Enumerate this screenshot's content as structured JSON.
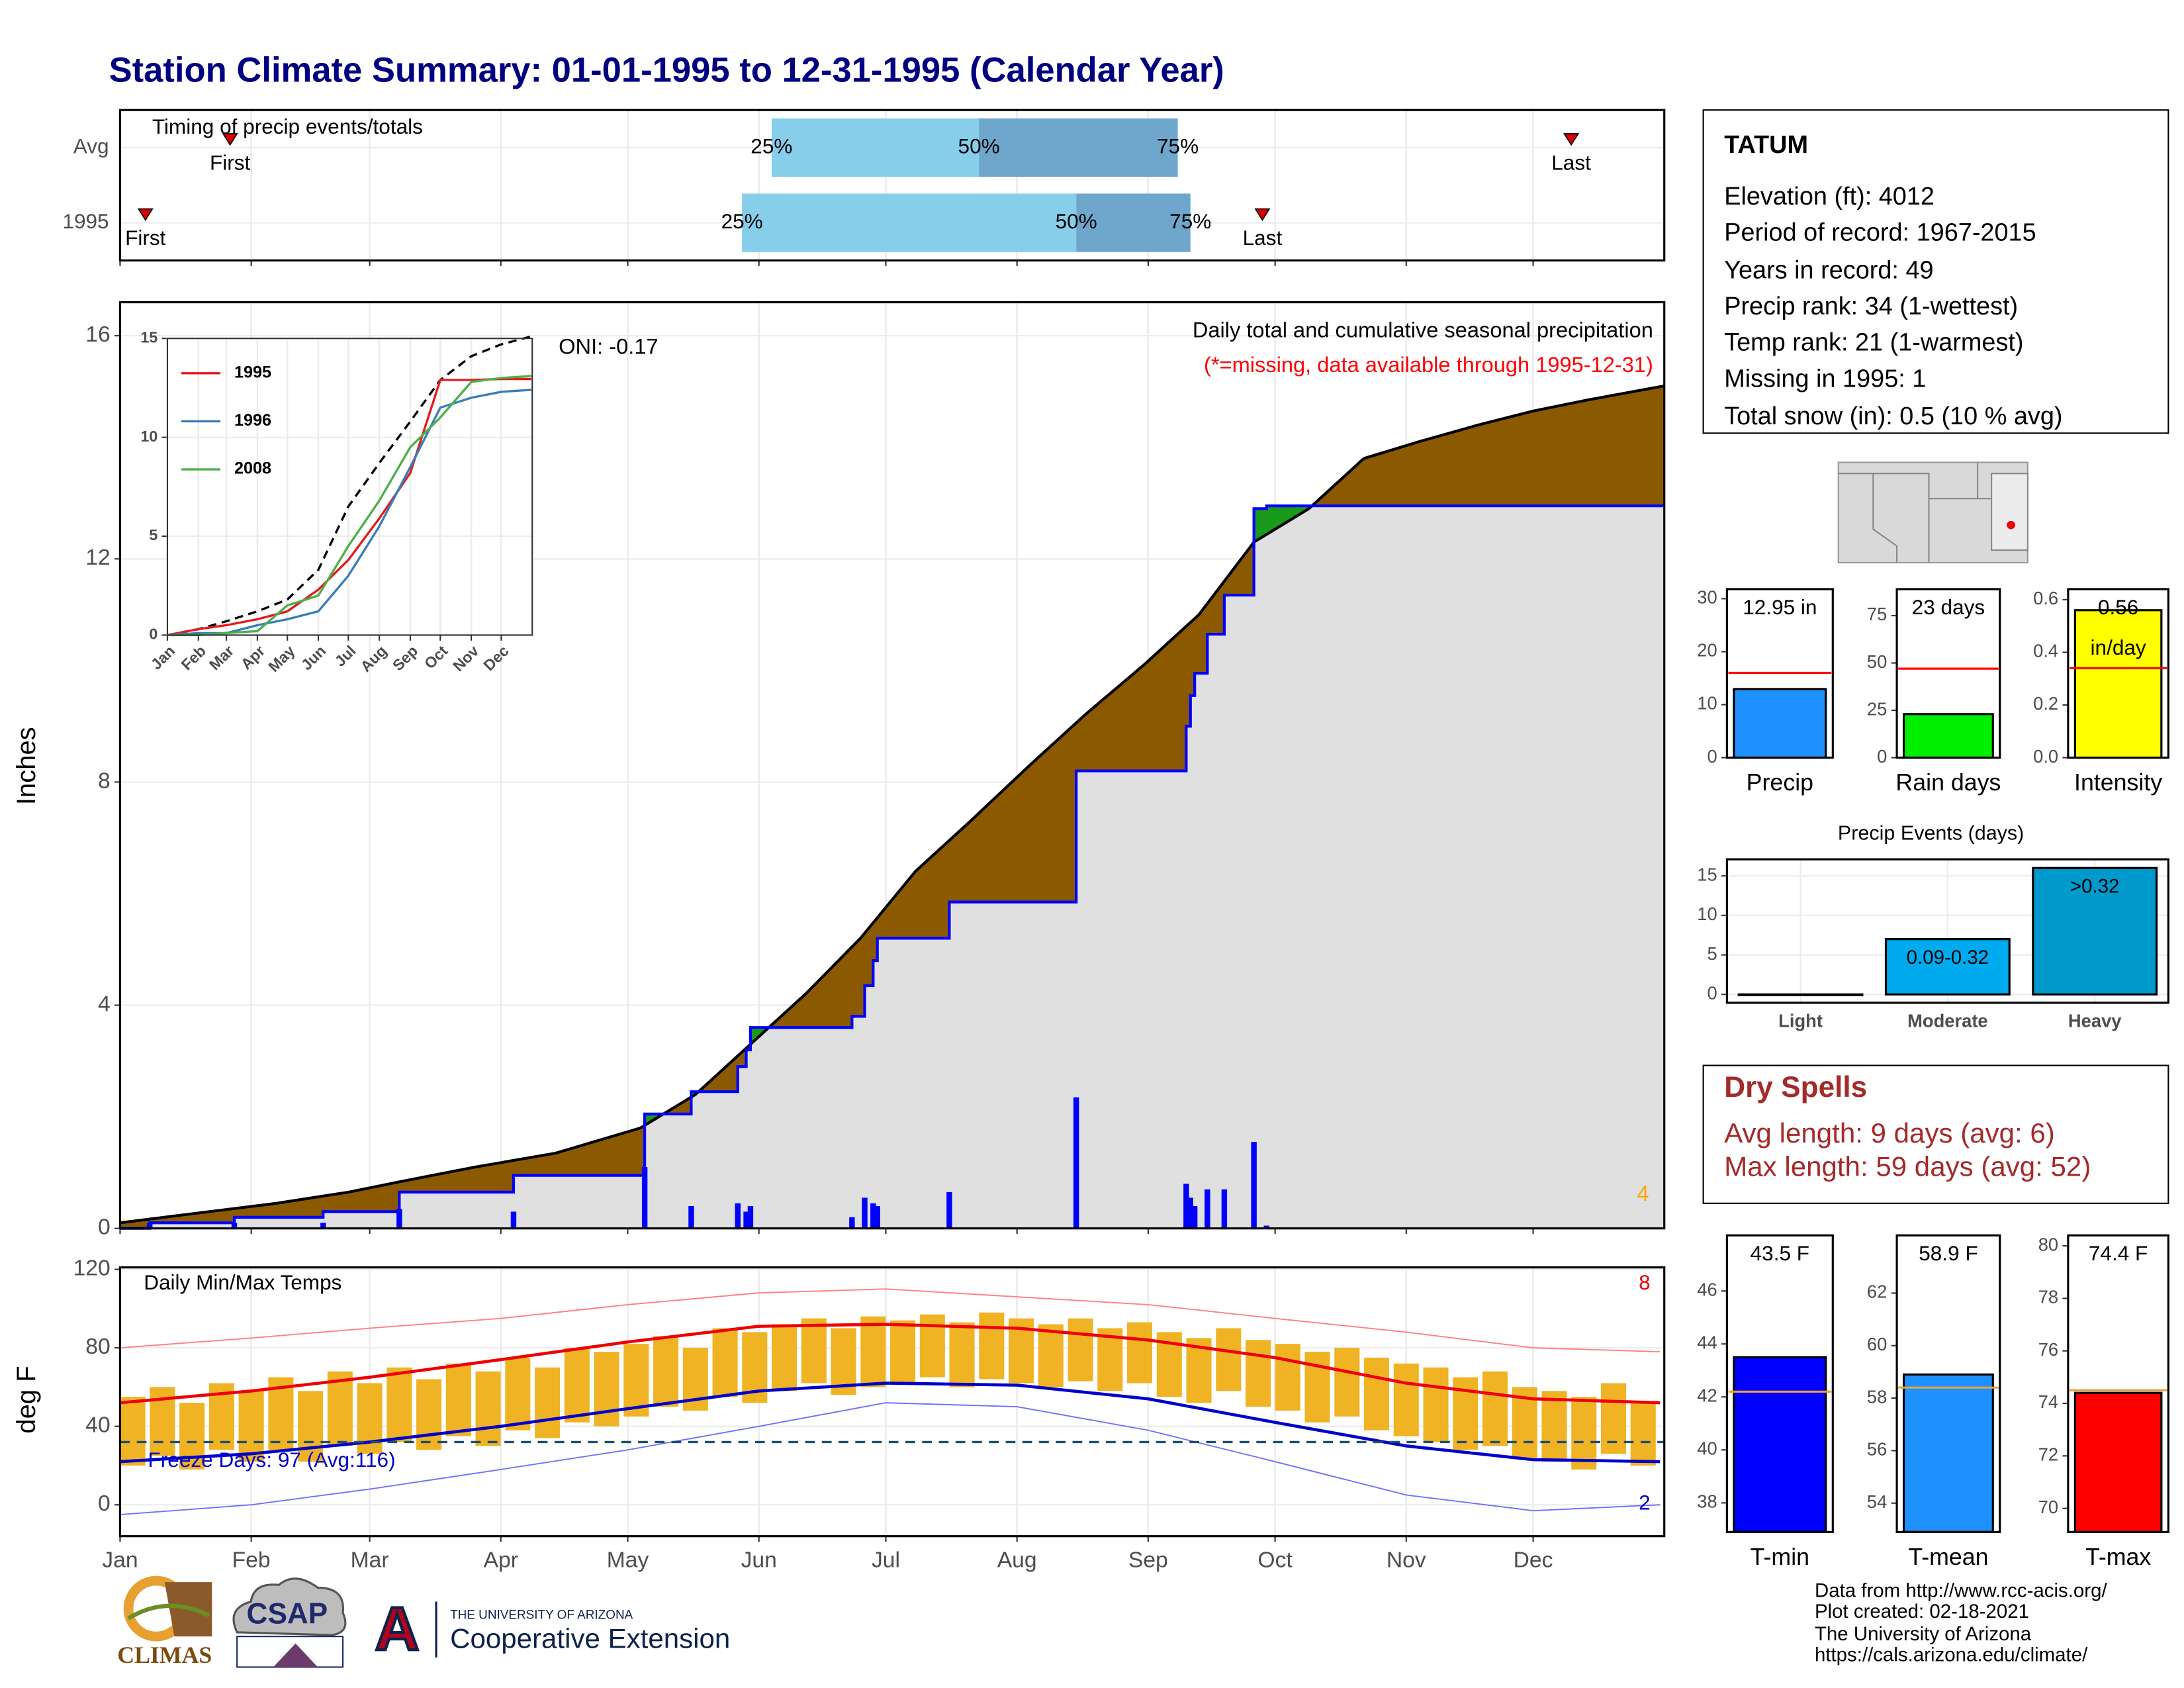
{
  "title": "Station Climate Summary: 01-01-1995 to 12-31-1995 (Calendar Year)",
  "station": {
    "name": "TATUM",
    "lines": [
      "Elevation (ft): 4012",
      "Period of record: 1967-2015",
      "Years in record: 49",
      "Precip rank: 34 (1-wettest)",
      "Temp rank: 21 (1-warmest)",
      "Missing in 1995: 1",
      "Total snow (in): 0.5 (10 % avg)"
    ]
  },
  "dry_spells": {
    "title": "Dry Spells",
    "lines": [
      "Avg length: 9 days (avg: 6)",
      "Max length: 59 days (avg: 52)"
    ]
  },
  "footer": [
    "Data from http://www.rcc-acis.org/",
    "Plot created: 02-18-2021",
    "The University of Arizona",
    "https://cals.arizona.edu/climate/"
  ],
  "logos": {
    "climas": "CLIMAS",
    "csap": "CSAP",
    "ua_mark": "A",
    "ua_name": "THE UNIVERSITY OF ARIZONA",
    "extension": "Cooperative Extension"
  },
  "chart_data": [
    {
      "type": "timing",
      "title": "Timing of precip events/totals",
      "categories": [
        "Avg",
        "1995"
      ],
      "first": [
        27,
        7
      ],
      "last": [
        344,
        271
      ],
      "q25": [
        155,
        148
      ],
      "q50": [
        204,
        227
      ],
      "q75": [
        251,
        254
      ],
      "quantile_labels": [
        "25%",
        "50%",
        "75%"
      ],
      "event_labels": [
        "First",
        "Last"
      ],
      "colors": [
        "#87ceeb",
        "#6ea6cc"
      ],
      "marker_color": "#dd0000",
      "xlim": [
        1,
        366
      ],
      "xticks": [
        1,
        32,
        60,
        91,
        121,
        152,
        182,
        213,
        244,
        274,
        305,
        335
      ]
    },
    {
      "type": "cumulative",
      "ylabel": "Inches",
      "annotations": [
        "ONI: -0.17",
        "Daily total and cumulative seasonal precipitation",
        "(*=missing, data available through 1995-12-31)",
        "4"
      ],
      "x": [
        8,
        28,
        49,
        67,
        94,
        125,
        136,
        147,
        149,
        150,
        174,
        177,
        179,
        180,
        197,
        227,
        253,
        254,
        255,
        258,
        262,
        269,
        272
      ],
      "values": [
        0.1,
        0.1,
        0.1,
        0.35,
        0.3,
        1.1,
        0.4,
        0.45,
        0.3,
        0.4,
        0.2,
        0.55,
        0.45,
        0.4,
        0.65,
        2.35,
        0.8,
        0.55,
        0.4,
        0.7,
        0.7,
        1.55,
        0.05
      ],
      "average": {
        "x": [
          1,
          22,
          38,
          55,
          68,
          85,
          104,
          124,
          137,
          150,
          163,
          176,
          189,
          202,
          216,
          229,
          243,
          256,
          269,
          282,
          295,
          308,
          322,
          335,
          348,
          366
        ],
        "values": [
          0.1,
          0.3,
          0.45,
          0.65,
          0.85,
          1.1,
          1.35,
          1.8,
          2.4,
          3.3,
          4.2,
          5.2,
          6.4,
          7.3,
          8.3,
          9.2,
          10.1,
          11.0,
          12.3,
          12.9,
          13.8,
          14.1,
          14.4,
          14.65,
          14.85,
          15.1
        ]
      },
      "color": "#0000ff",
      "avg_color": "#8b5a00",
      "above_color": "#1a9a1a",
      "below_color": "#e0e0e0",
      "avg_line_color": "#000000",
      "annotation_colors": [
        "#000000",
        "#000000",
        "#ff0000",
        "#ffa500"
      ],
      "xlim": [
        1,
        366
      ],
      "xticks": [
        1,
        32,
        60,
        91,
        121,
        152,
        182,
        213,
        244,
        274,
        305,
        335
      ],
      "ylim": [
        0,
        16.6
      ],
      "yticks": [
        0,
        4,
        8,
        12,
        16
      ],
      "grid": true
    },
    {
      "type": "line",
      "x": [
        1,
        32,
        60,
        91,
        121,
        152,
        182,
        213,
        244,
        274,
        305,
        335,
        365
      ],
      "series": [
        {
          "name": "1995",
          "color": "#e41a1c",
          "values": [
            0,
            0.3,
            0.5,
            0.8,
            1.2,
            2.3,
            3.8,
            5.9,
            8.2,
            12.9,
            12.9,
            12.95,
            12.95
          ]
        },
        {
          "name": "1996",
          "color": "#377eb8",
          "values": [
            0,
            0.1,
            0.1,
            0.5,
            0.8,
            1.2,
            3.0,
            5.5,
            8.5,
            11.5,
            12.0,
            12.3,
            12.4
          ]
        },
        {
          "name": "2008",
          "color": "#4daf4a",
          "values": [
            0,
            0,
            0.1,
            0.2,
            1.5,
            2.0,
            4.5,
            6.8,
            9.5,
            11.0,
            12.8,
            13.0,
            13.1
          ]
        }
      ],
      "average": {
        "color": "#000000",
        "values": [
          0,
          0.3,
          0.7,
          1.2,
          1.8,
          3.3,
          6.5,
          8.7,
          10.8,
          12.9,
          14.1,
          14.7,
          15.1
        ]
      },
      "xlim": [
        1,
        366
      ],
      "xticks": [
        {
          "value": 1,
          "label": "Jan"
        },
        {
          "value": 32,
          "label": "Feb"
        },
        {
          "value": 60,
          "label": "Mar"
        },
        {
          "value": 91,
          "label": "Apr"
        },
        {
          "value": 121,
          "label": "May"
        },
        {
          "value": 152,
          "label": "Jun"
        },
        {
          "value": 182,
          "label": "Jul"
        },
        {
          "value": 213,
          "label": "Aug"
        },
        {
          "value": 244,
          "label": "Sep"
        },
        {
          "value": 274,
          "label": "Oct"
        },
        {
          "value": 305,
          "label": "Nov"
        },
        {
          "value": 335,
          "label": "Dec"
        }
      ],
      "ylim": [
        0,
        15
      ],
      "yticks": [
        0,
        5,
        10,
        15
      ],
      "grid": true
    },
    {
      "type": "temp",
      "title": "Daily Min/Max Temps",
      "ylabel": "deg F",
      "x": [
        4,
        11,
        18,
        25,
        32,
        39,
        46,
        53,
        60,
        67,
        74,
        81,
        88,
        95,
        102,
        109,
        116,
        123,
        130,
        137,
        144,
        151,
        158,
        165,
        172,
        179,
        186,
        193,
        200,
        207,
        214,
        221,
        228,
        235,
        242,
        249,
        256,
        263,
        270,
        277,
        284,
        291,
        298,
        305,
        312,
        319,
        326,
        333,
        340,
        347,
        354,
        361
      ],
      "tmax": [
        55,
        60,
        52,
        62,
        58,
        65,
        58,
        68,
        62,
        70,
        64,
        72,
        68,
        75,
        70,
        80,
        78,
        82,
        86,
        80,
        90,
        88,
        92,
        95,
        90,
        96,
        94,
        97,
        93,
        98,
        95,
        92,
        95,
        90,
        93,
        88,
        85,
        90,
        84,
        82,
        78,
        80,
        75,
        72,
        70,
        65,
        68,
        60,
        58,
        55,
        62,
        52
      ],
      "tmin": [
        20,
        25,
        18,
        28,
        22,
        28,
        22,
        30,
        26,
        32,
        28,
        35,
        30,
        38,
        34,
        42,
        40,
        45,
        50,
        48,
        55,
        52,
        58,
        62,
        56,
        60,
        62,
        65,
        60,
        64,
        62,
        60,
        63,
        58,
        62,
        55,
        52,
        58,
        50,
        48,
        42,
        45,
        38,
        35,
        32,
        28,
        30,
        24,
        22,
        18,
        26,
        20
      ],
      "avg_x": [
        1,
        32,
        60,
        91,
        121,
        152,
        182,
        213,
        244,
        274,
        305,
        335,
        365
      ],
      "avg_max": [
        52,
        58,
        65,
        74,
        83,
        91,
        92,
        90,
        84,
        75,
        62,
        54,
        52
      ],
      "avg_min": [
        22,
        26,
        32,
        40,
        49,
        58,
        62,
        61,
        54,
        42,
        30,
        23,
        22
      ],
      "rec_max": [
        80,
        85,
        90,
        95,
        102,
        108,
        110,
        106,
        102,
        95,
        88,
        80,
        78
      ],
      "rec_min": [
        -5,
        0,
        8,
        18,
        28,
        40,
        52,
        50,
        38,
        22,
        5,
        -3,
        0
      ],
      "freeze_line": 32,
      "freeze_label": "Freeze Days: 97 (Avg:116)",
      "count_labels": [
        "8",
        "2"
      ],
      "colors": {
        "bars": "#f0b323",
        "avg_max": "#ee0000",
        "avg_min": "#0000cc",
        "rec_max": "#ff8080",
        "rec_min": "#7070ff",
        "freeze": "#1f4e6e"
      },
      "xlim": [
        1,
        366
      ],
      "xticks": [
        {
          "value": 1,
          "label": "Jan"
        },
        {
          "value": 32,
          "label": "Feb"
        },
        {
          "value": 60,
          "label": "Mar"
        },
        {
          "value": 91,
          "label": "Apr"
        },
        {
          "value": 121,
          "label": "May"
        },
        {
          "value": 152,
          "label": "Jun"
        },
        {
          "value": 182,
          "label": "Jul"
        },
        {
          "value": 213,
          "label": "Aug"
        },
        {
          "value": 244,
          "label": "Sep"
        },
        {
          "value": 274,
          "label": "Oct"
        },
        {
          "value": 305,
          "label": "Nov"
        },
        {
          "value": 335,
          "label": "Dec"
        }
      ],
      "ylim": [
        -16,
        121
      ],
      "yticks": [
        0,
        40,
        80,
        120
      ],
      "grid": true
    },
    {
      "type": "single",
      "category": "Precip",
      "value": 12.95,
      "value_label": "12.95 in",
      "average": 16,
      "color": "#1e90ff",
      "avg_color": "#ff0000",
      "ylim": [
        0,
        31.8
      ],
      "yticks": [
        0,
        10,
        20,
        30
      ]
    },
    {
      "type": "single",
      "category": "Rain days",
      "value": 23,
      "value_label": "23 days",
      "average": 47,
      "color": "#00ee00",
      "avg_color": "#ff0000",
      "ylim": [
        0,
        89
      ],
      "yticks": [
        0,
        25,
        50,
        75
      ]
    },
    {
      "type": "single",
      "category": "Intensity",
      "value": 0.56,
      "value_label": "0.56",
      "unit_label": "in/day",
      "average": 0.34,
      "color": "#ffff00",
      "avg_color": "#ff0000",
      "ylim": [
        0,
        0.64
      ],
      "yticks": [
        {
          "value": 0,
          "label": "0.0"
        },
        0.2,
        0.4,
        0.6
      ]
    },
    {
      "type": "bar",
      "title": "Precip Events (days)",
      "categories": [
        "Light",
        "Moderate",
        "Heavy"
      ],
      "values": [
        0,
        7,
        16
      ],
      "value_labels": [
        null,
        "0.09-0.32",
        ">0.32"
      ],
      "colors": [
        "#00aaee",
        "#00aaee",
        "#0099cc"
      ],
      "ylim": [
        -1.06,
        17.1
      ],
      "yticks": [
        0,
        5,
        10,
        15
      ],
      "grid": true
    },
    {
      "type": "single",
      "category": "T-min",
      "value": 43.5,
      "value_label": "43.5 F",
      "average": 42.2,
      "color": "#0000ff",
      "avg_color": "#e8a040",
      "ylim": [
        36.9,
        48.1
      ],
      "yticks": [
        38,
        40,
        42,
        44,
        46
      ]
    },
    {
      "type": "single",
      "category": "T-mean",
      "value": 58.9,
      "value_label": "58.9 F",
      "average": 58.4,
      "color": "#1e90ff",
      "avg_color": "#e8a040",
      "ylim": [
        52.9,
        64.2
      ],
      "yticks": [
        54,
        56,
        58,
        60,
        62
      ]
    },
    {
      "type": "single",
      "category": "T-max",
      "value": 74.4,
      "value_label": "74.4 F",
      "average": 74.5,
      "color": "#ff0000",
      "avg_color": "#e8a040",
      "ylim": [
        69.1,
        80.4
      ],
      "yticks": [
        70,
        72,
        74,
        76,
        78,
        80
      ]
    }
  ]
}
